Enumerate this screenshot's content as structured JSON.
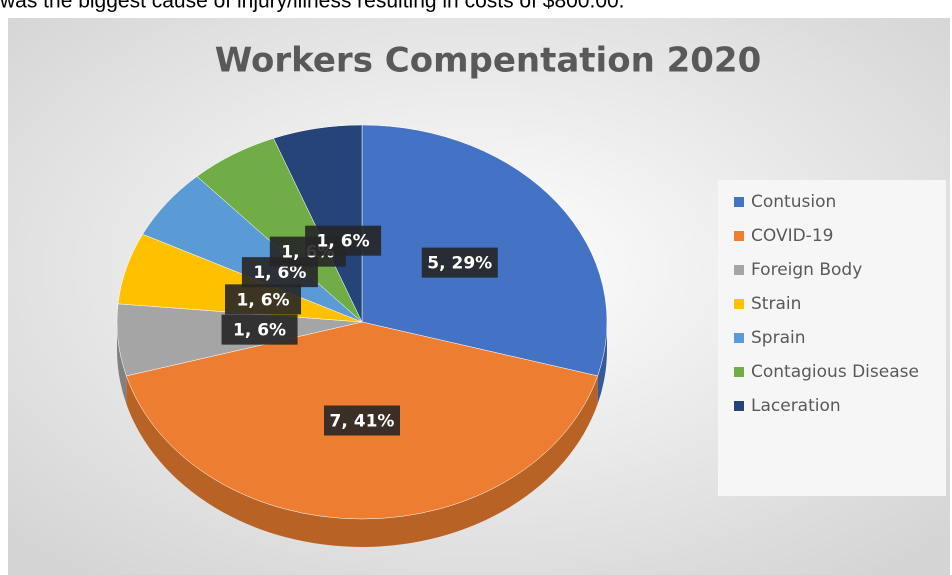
{
  "text_above": "was the biggest cause of injury/illness resulting in costs of $800.00.",
  "chart_data": {
    "type": "pie",
    "title": "Workers Compentation 2020",
    "categories": [
      "Contusion",
      "COVID-19",
      "Foreign Body",
      "Strain",
      "Sprain",
      "Contagious Disease",
      "Laceration"
    ],
    "values": [
      5,
      7,
      1,
      1,
      1,
      1,
      1
    ],
    "value_labels": [
      "5, 29%",
      "7, 41%",
      "1, 6%",
      "1, 6%",
      "1, 6%",
      "1, 6%",
      "1, 6%"
    ],
    "colors": [
      "#4472c4",
      "#ed7d31",
      "#a5a5a5",
      "#ffc000",
      "#5b9bd5",
      "#70ad47",
      "#264478"
    ],
    "legend": "right"
  }
}
